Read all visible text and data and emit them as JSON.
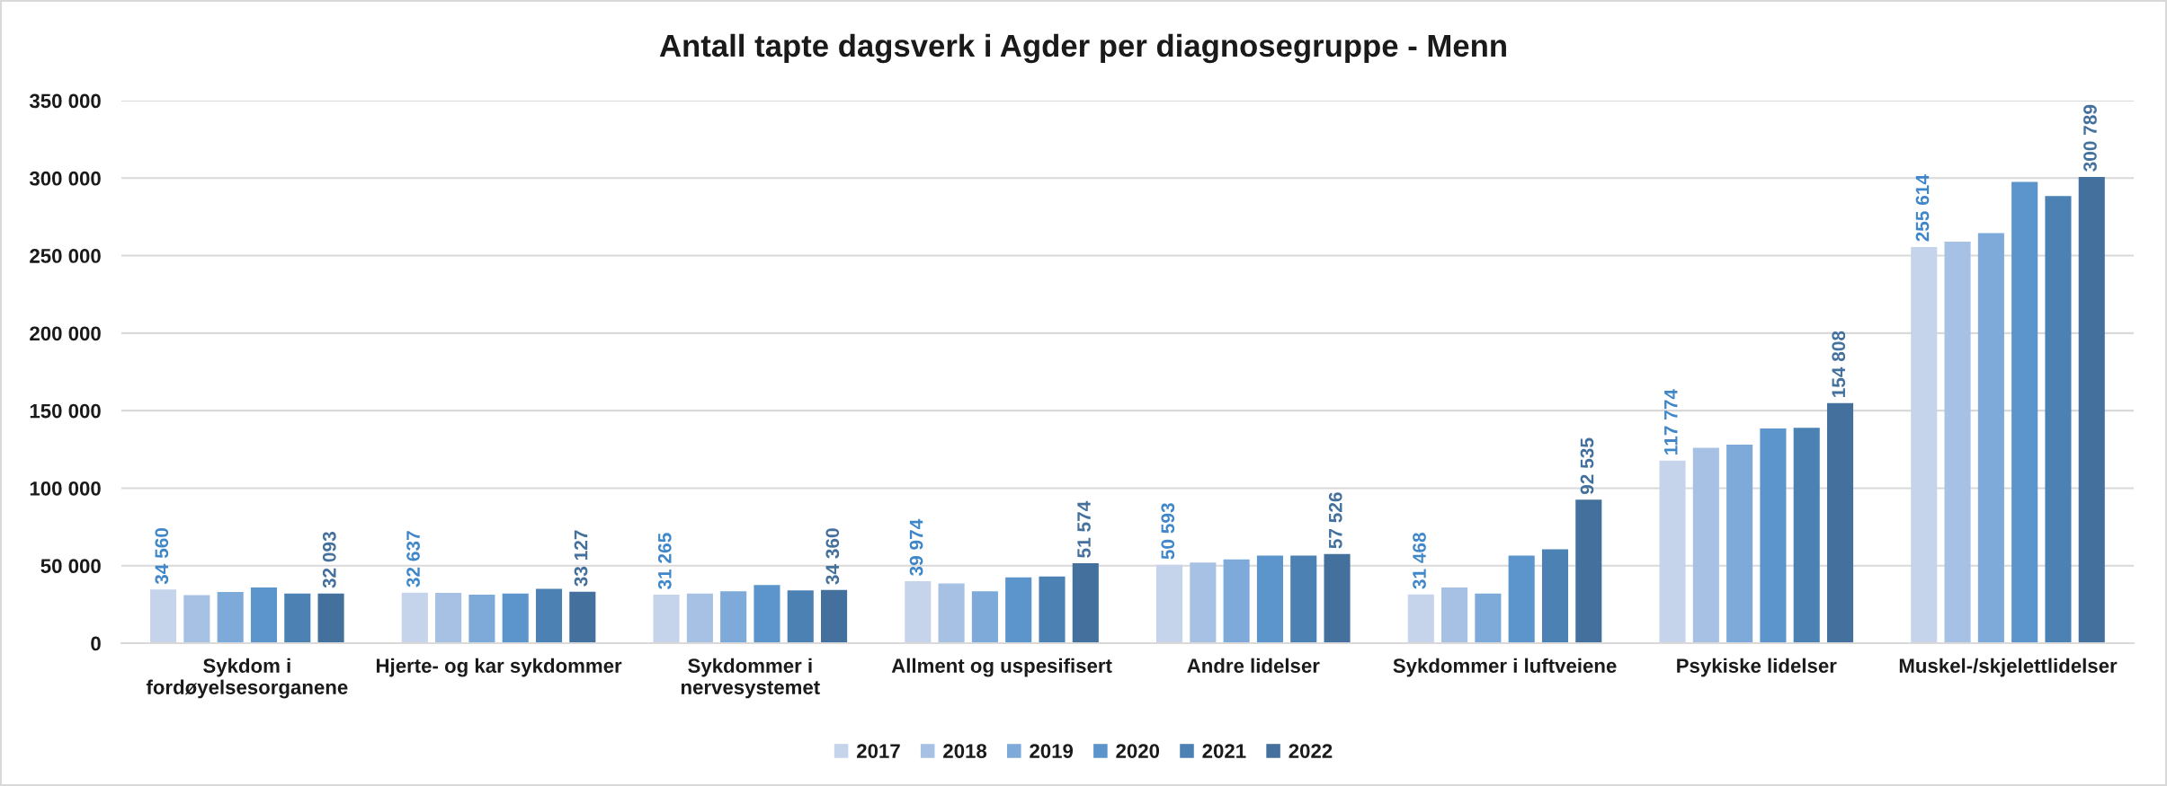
{
  "chart_data": {
    "type": "bar",
    "title": "Antall tapte dagsverk i Agder per diagnosegruppe - Menn",
    "categories": [
      "Sykdom i\nfordøyelsesorganene",
      "Hjerte- og kar sykdommer",
      "Sykdommer i\nnervesystemet",
      "Allment og uspesifisert",
      "Andre lidelser",
      "Sykdommer i luftveiene",
      "Psykiske lidelser",
      "Muskel-/skjelettlidelser"
    ],
    "series": [
      {
        "name": "2017",
        "color": "#c5d4ea",
        "values": [
          34560,
          32637,
          31265,
          39974,
          50593,
          31468,
          117774,
          255614
        ],
        "value_labels": [
          "34 560",
          "32 637",
          "31 265",
          "39 974",
          "50 593",
          "31 468",
          "117 774",
          "255 614"
        ]
      },
      {
        "name": "2018",
        "color": "#a6c1e4",
        "values": [
          31000,
          32500,
          32000,
          38500,
          52000,
          36000,
          126000,
          259000
        ]
      },
      {
        "name": "2019",
        "color": "#7eaad9",
        "values": [
          33000,
          31300,
          33500,
          33500,
          54000,
          32000,
          128000,
          264500
        ]
      },
      {
        "name": "2020",
        "color": "#5b95cc",
        "values": [
          36000,
          32000,
          37500,
          42500,
          56500,
          56500,
          138500,
          297500
        ]
      },
      {
        "name": "2021",
        "color": "#4c81b4",
        "values": [
          32000,
          35000,
          34000,
          43000,
          56500,
          60500,
          139000,
          288500
        ]
      },
      {
        "name": "2022",
        "color": "#43709c",
        "values": [
          32093,
          33127,
          34360,
          51574,
          57526,
          92535,
          154808,
          300789
        ],
        "value_labels": [
          "32 093",
          "33 127",
          "34 360",
          "51 574",
          "57 526",
          "92 535",
          "154 808",
          "300 789"
        ]
      }
    ],
    "ylim": [
      0,
      350000
    ],
    "yticks": [
      0,
      {
        "value": 50000,
        "label": "50 000"
      },
      {
        "value": 100000,
        "label": "100 000"
      },
      {
        "value": 150000,
        "label": "150 000"
      },
      {
        "value": 200000,
        "label": "200 000"
      },
      {
        "value": 250000,
        "label": "250 000"
      },
      {
        "value": 300000,
        "label": "300 000"
      },
      {
        "value": 350000,
        "label": "350 000"
      }
    ],
    "grid": "y",
    "legend": "bottom"
  }
}
